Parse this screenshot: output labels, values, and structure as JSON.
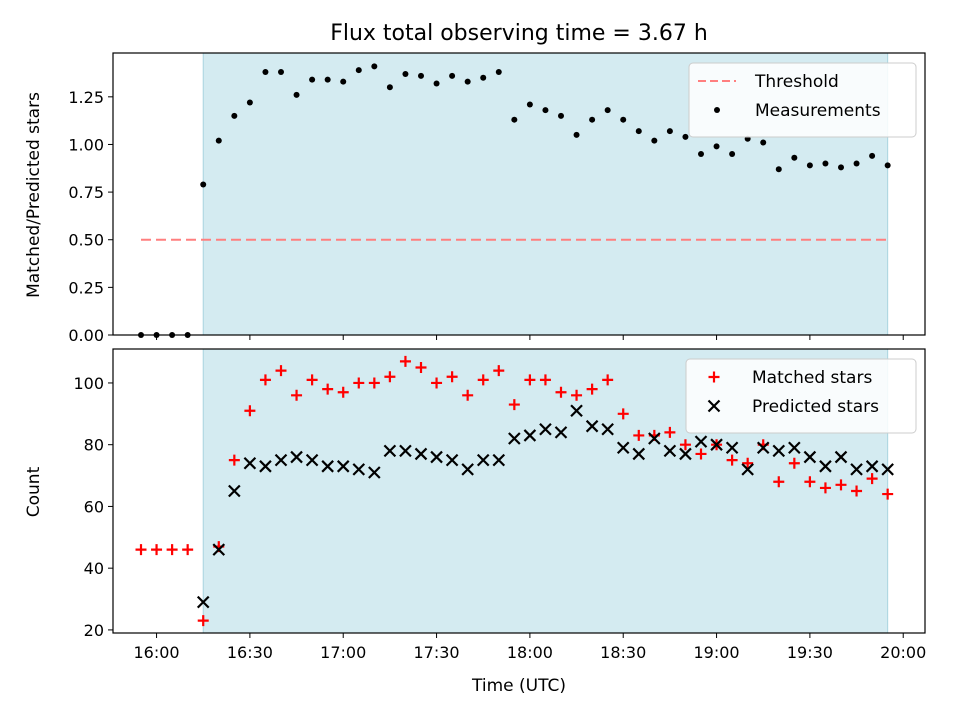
{
  "chart_data": [
    {
      "type": "scatter",
      "title": "Flux total observing time = 3.67 h",
      "ylabel": "Matched/Predicted stars",
      "xlabel": "",
      "xlim": [
        "15:46",
        "20:07"
      ],
      "ylim": [
        0,
        1.48
      ],
      "yticks": [
        0.0,
        0.25,
        0.5,
        0.75,
        1.0,
        1.25
      ],
      "ytick_labels": [
        "0.00",
        "0.25",
        "0.50",
        "0.75",
        "1.00",
        "1.25"
      ],
      "shaded_span": [
        "16:15",
        "19:55"
      ],
      "shade_color": "#d4ebf1",
      "legend_position": "upper right",
      "threshold": {
        "name": "Threshold",
        "value": 0.5,
        "x_range": [
          "15:55",
          "19:55"
        ],
        "color": "#ff7f7f",
        "style": "dashed"
      },
      "series": [
        {
          "name": "Measurements",
          "marker": "dot",
          "color": "#000000",
          "x": [
            "15:55",
            "16:00",
            "16:05",
            "16:10",
            "16:15",
            "16:20",
            "16:25",
            "16:30",
            "16:35",
            "16:40",
            "16:45",
            "16:50",
            "16:55",
            "17:00",
            "17:05",
            "17:10",
            "17:15",
            "17:20",
            "17:25",
            "17:30",
            "17:35",
            "17:40",
            "17:45",
            "17:50",
            "17:55",
            "18:00",
            "18:05",
            "18:10",
            "18:15",
            "18:20",
            "18:25",
            "18:30",
            "18:35",
            "18:40",
            "18:45",
            "18:50",
            "18:55",
            "19:00",
            "19:05",
            "19:10",
            "19:15",
            "19:20",
            "19:25",
            "19:30",
            "19:35",
            "19:40",
            "19:45",
            "19:50",
            "19:55"
          ],
          "values": [
            0.0,
            0.0,
            0.0,
            0.0,
            0.79,
            1.02,
            1.15,
            1.22,
            1.38,
            1.38,
            1.26,
            1.34,
            1.34,
            1.33,
            1.39,
            1.41,
            1.3,
            1.37,
            1.36,
            1.32,
            1.36,
            1.33,
            1.35,
            1.38,
            1.13,
            1.21,
            1.18,
            1.15,
            1.05,
            1.13,
            1.18,
            1.13,
            1.07,
            1.02,
            1.07,
            1.04,
            0.95,
            0.99,
            0.95,
            1.03,
            1.01,
            0.87,
            0.93,
            0.89,
            0.9,
            0.88,
            0.9,
            0.94,
            0.89
          ]
        }
      ]
    },
    {
      "type": "scatter",
      "title": "",
      "ylabel": "Count",
      "xlabel": "Time (UTC)",
      "xlim": [
        "15:46",
        "20:07"
      ],
      "ylim": [
        19,
        111
      ],
      "yticks": [
        20,
        40,
        60,
        80,
        100
      ],
      "ytick_labels": [
        "20",
        "40",
        "60",
        "80",
        "100"
      ],
      "xticks": [
        "16:00",
        "16:30",
        "17:00",
        "17:30",
        "18:00",
        "18:30",
        "19:00",
        "19:30",
        "20:00"
      ],
      "shaded_span": [
        "16:15",
        "19:55"
      ],
      "shade_color": "#d4ebf1",
      "legend_position": "upper right",
      "series": [
        {
          "name": "Matched stars",
          "marker": "plus",
          "color": "#ff0000",
          "x": [
            "15:55",
            "16:00",
            "16:05",
            "16:10",
            "16:15",
            "16:20",
            "16:25",
            "16:30",
            "16:35",
            "16:40",
            "16:45",
            "16:50",
            "16:55",
            "17:00",
            "17:05",
            "17:10",
            "17:15",
            "17:20",
            "17:25",
            "17:30",
            "17:35",
            "17:40",
            "17:45",
            "17:50",
            "17:55",
            "18:00",
            "18:05",
            "18:10",
            "18:15",
            "18:20",
            "18:25",
            "18:30",
            "18:35",
            "18:40",
            "18:45",
            "18:50",
            "18:55",
            "19:00",
            "19:05",
            "19:10",
            "19:15",
            "19:20",
            "19:25",
            "19:30",
            "19:35",
            "19:40",
            "19:45",
            "19:50",
            "19:55"
          ],
          "values": [
            46,
            46,
            46,
            46,
            23,
            47,
            75,
            91,
            101,
            104,
            96,
            101,
            98,
            97,
            100,
            100,
            102,
            107,
            105,
            100,
            102,
            96,
            101,
            104,
            93,
            101,
            101,
            97,
            96,
            98,
            101,
            90,
            83,
            83,
            84,
            80,
            77,
            80,
            75,
            74,
            80,
            68,
            74,
            68,
            66,
            67,
            65,
            69,
            64
          ]
        },
        {
          "name": "Predicted stars",
          "marker": "x",
          "color": "#000000",
          "x": [
            "16:15",
            "16:20",
            "16:25",
            "16:30",
            "16:35",
            "16:40",
            "16:45",
            "16:50",
            "16:55",
            "17:00",
            "17:05",
            "17:10",
            "17:15",
            "17:20",
            "17:25",
            "17:30",
            "17:35",
            "17:40",
            "17:45",
            "17:50",
            "17:55",
            "18:00",
            "18:05",
            "18:10",
            "18:15",
            "18:20",
            "18:25",
            "18:30",
            "18:35",
            "18:40",
            "18:45",
            "18:50",
            "18:55",
            "19:00",
            "19:05",
            "19:10",
            "19:15",
            "19:20",
            "19:25",
            "19:30",
            "19:35",
            "19:40",
            "19:45",
            "19:50",
            "19:55"
          ],
          "values": [
            29,
            46,
            65,
            74,
            73,
            75,
            76,
            75,
            73,
            73,
            72,
            71,
            78,
            78,
            77,
            76,
            75,
            72,
            75,
            75,
            82,
            83,
            85,
            84,
            91,
            86,
            85,
            79,
            77,
            82,
            78,
            77,
            81,
            80,
            79,
            72,
            79,
            78,
            79,
            76,
            73,
            76,
            72,
            73,
            72
          ]
        }
      ]
    }
  ]
}
